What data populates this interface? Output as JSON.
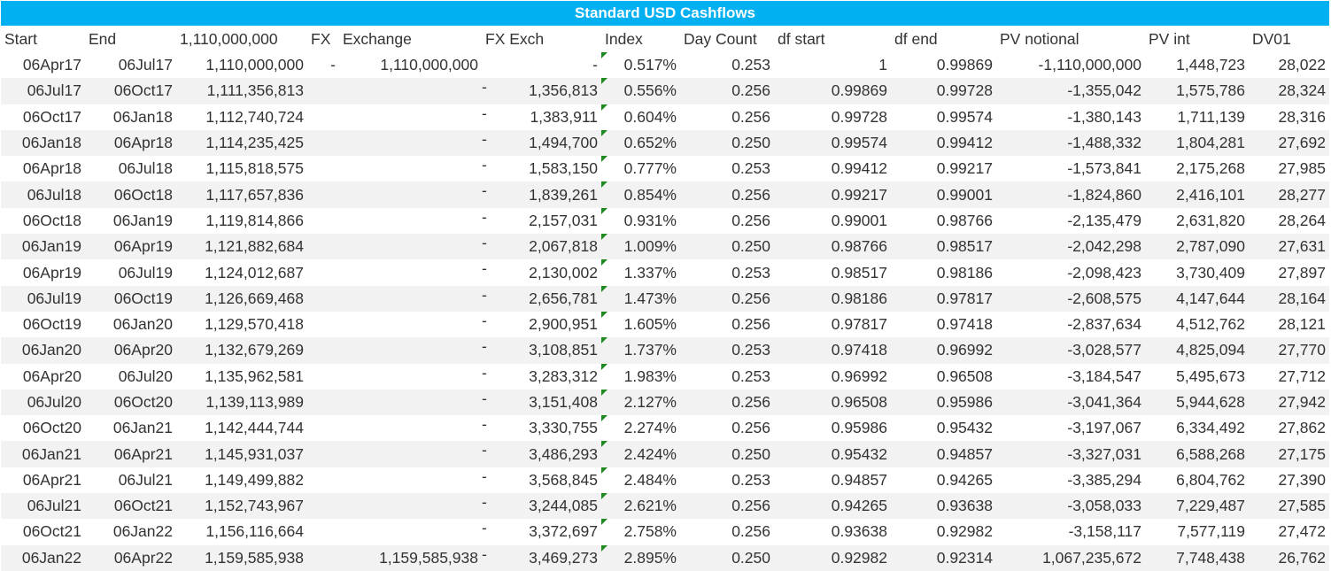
{
  "title": "Standard USD Cashflows",
  "headers": [
    "Start",
    "End",
    "1,110,000,000",
    "FX",
    "Exchange",
    "FX Exch",
    "Index",
    "Day Count",
    "df start",
    "df end",
    "PV notional",
    "PV int",
    "DV01"
  ],
  "rows": [
    {
      "start": "06Apr17",
      "end": "06Jul17",
      "notional": "1,110,000,000",
      "fx": "-",
      "exchange": "1,110,000,000",
      "fxexch_dash": "",
      "fxexch": "-",
      "index": "0.517%",
      "daycount": "0.253",
      "dfstart": "1",
      "dfend": "0.99869",
      "pvnotional": "-1,110,000,000",
      "pvint": "1,448,723",
      "dv01": "28,022"
    },
    {
      "start": "06Jul17",
      "end": "06Oct17",
      "notional": "1,111,356,813",
      "fx": "",
      "exchange": "",
      "fxexch_dash": "-",
      "fxexch": "1,356,813",
      "index": "0.556%",
      "daycount": "0.256",
      "dfstart": "0.99869",
      "dfend": "0.99728",
      "pvnotional": "-1,355,042",
      "pvint": "1,575,786",
      "dv01": "28,324"
    },
    {
      "start": "06Oct17",
      "end": "06Jan18",
      "notional": "1,112,740,724",
      "fx": "",
      "exchange": "",
      "fxexch_dash": "-",
      "fxexch": "1,383,911",
      "index": "0.604%",
      "daycount": "0.256",
      "dfstart": "0.99728",
      "dfend": "0.99574",
      "pvnotional": "-1,380,143",
      "pvint": "1,711,139",
      "dv01": "28,316"
    },
    {
      "start": "06Jan18",
      "end": "06Apr18",
      "notional": "1,114,235,425",
      "fx": "",
      "exchange": "",
      "fxexch_dash": "-",
      "fxexch": "1,494,700",
      "index": "0.652%",
      "daycount": "0.250",
      "dfstart": "0.99574",
      "dfend": "0.99412",
      "pvnotional": "-1,488,332",
      "pvint": "1,804,281",
      "dv01": "27,692"
    },
    {
      "start": "06Apr18",
      "end": "06Jul18",
      "notional": "1,115,818,575",
      "fx": "",
      "exchange": "",
      "fxexch_dash": "-",
      "fxexch": "1,583,150",
      "index": "0.777%",
      "daycount": "0.253",
      "dfstart": "0.99412",
      "dfend": "0.99217",
      "pvnotional": "-1,573,841",
      "pvint": "2,175,268",
      "dv01": "27,985"
    },
    {
      "start": "06Jul18",
      "end": "06Oct18",
      "notional": "1,117,657,836",
      "fx": "",
      "exchange": "",
      "fxexch_dash": "-",
      "fxexch": "1,839,261",
      "index": "0.854%",
      "daycount": "0.256",
      "dfstart": "0.99217",
      "dfend": "0.99001",
      "pvnotional": "-1,824,860",
      "pvint": "2,416,101",
      "dv01": "28,277"
    },
    {
      "start": "06Oct18",
      "end": "06Jan19",
      "notional": "1,119,814,866",
      "fx": "",
      "exchange": "",
      "fxexch_dash": "-",
      "fxexch": "2,157,031",
      "index": "0.931%",
      "daycount": "0.256",
      "dfstart": "0.99001",
      "dfend": "0.98766",
      "pvnotional": "-2,135,479",
      "pvint": "2,631,820",
      "dv01": "28,264"
    },
    {
      "start": "06Jan19",
      "end": "06Apr19",
      "notional": "1,121,882,684",
      "fx": "",
      "exchange": "",
      "fxexch_dash": "-",
      "fxexch": "2,067,818",
      "index": "1.009%",
      "daycount": "0.250",
      "dfstart": "0.98766",
      "dfend": "0.98517",
      "pvnotional": "-2,042,298",
      "pvint": "2,787,090",
      "dv01": "27,631"
    },
    {
      "start": "06Apr19",
      "end": "06Jul19",
      "notional": "1,124,012,687",
      "fx": "",
      "exchange": "",
      "fxexch_dash": "-",
      "fxexch": "2,130,002",
      "index": "1.337%",
      "daycount": "0.253",
      "dfstart": "0.98517",
      "dfend": "0.98186",
      "pvnotional": "-2,098,423",
      "pvint": "3,730,409",
      "dv01": "27,897"
    },
    {
      "start": "06Jul19",
      "end": "06Oct19",
      "notional": "1,126,669,468",
      "fx": "",
      "exchange": "",
      "fxexch_dash": "-",
      "fxexch": "2,656,781",
      "index": "1.473%",
      "daycount": "0.256",
      "dfstart": "0.98186",
      "dfend": "0.97817",
      "pvnotional": "-2,608,575",
      "pvint": "4,147,644",
      "dv01": "28,164"
    },
    {
      "start": "06Oct19",
      "end": "06Jan20",
      "notional": "1,129,570,418",
      "fx": "",
      "exchange": "",
      "fxexch_dash": "-",
      "fxexch": "2,900,951",
      "index": "1.605%",
      "daycount": "0.256",
      "dfstart": "0.97817",
      "dfend": "0.97418",
      "pvnotional": "-2,837,634",
      "pvint": "4,512,762",
      "dv01": "28,121"
    },
    {
      "start": "06Jan20",
      "end": "06Apr20",
      "notional": "1,132,679,269",
      "fx": "",
      "exchange": "",
      "fxexch_dash": "-",
      "fxexch": "3,108,851",
      "index": "1.737%",
      "daycount": "0.253",
      "dfstart": "0.97418",
      "dfend": "0.96992",
      "pvnotional": "-3,028,577",
      "pvint": "4,825,094",
      "dv01": "27,770"
    },
    {
      "start": "06Apr20",
      "end": "06Jul20",
      "notional": "1,135,962,581",
      "fx": "",
      "exchange": "",
      "fxexch_dash": "-",
      "fxexch": "3,283,312",
      "index": "1.983%",
      "daycount": "0.253",
      "dfstart": "0.96992",
      "dfend": "0.96508",
      "pvnotional": "-3,184,547",
      "pvint": "5,495,673",
      "dv01": "27,712"
    },
    {
      "start": "06Jul20",
      "end": "06Oct20",
      "notional": "1,139,113,989",
      "fx": "",
      "exchange": "",
      "fxexch_dash": "-",
      "fxexch": "3,151,408",
      "index": "2.127%",
      "daycount": "0.256",
      "dfstart": "0.96508",
      "dfend": "0.95986",
      "pvnotional": "-3,041,364",
      "pvint": "5,944,628",
      "dv01": "27,942"
    },
    {
      "start": "06Oct20",
      "end": "06Jan21",
      "notional": "1,142,444,744",
      "fx": "",
      "exchange": "",
      "fxexch_dash": "-",
      "fxexch": "3,330,755",
      "index": "2.274%",
      "daycount": "0.256",
      "dfstart": "0.95986",
      "dfend": "0.95432",
      "pvnotional": "-3,197,067",
      "pvint": "6,334,492",
      "dv01": "27,862"
    },
    {
      "start": "06Jan21",
      "end": "06Apr21",
      "notional": "1,145,931,037",
      "fx": "",
      "exchange": "",
      "fxexch_dash": "-",
      "fxexch": "3,486,293",
      "index": "2.424%",
      "daycount": "0.250",
      "dfstart": "0.95432",
      "dfend": "0.94857",
      "pvnotional": "-3,327,031",
      "pvint": "6,588,268",
      "dv01": "27,175"
    },
    {
      "start": "06Apr21",
      "end": "06Jul21",
      "notional": "1,149,499,882",
      "fx": "",
      "exchange": "",
      "fxexch_dash": "-",
      "fxexch": "3,568,845",
      "index": "2.484%",
      "daycount": "0.253",
      "dfstart": "0.94857",
      "dfend": "0.94265",
      "pvnotional": "-3,385,294",
      "pvint": "6,804,762",
      "dv01": "27,390"
    },
    {
      "start": "06Jul21",
      "end": "06Oct21",
      "notional": "1,152,743,967",
      "fx": "",
      "exchange": "",
      "fxexch_dash": "-",
      "fxexch": "3,244,085",
      "index": "2.621%",
      "daycount": "0.256",
      "dfstart": "0.94265",
      "dfend": "0.93638",
      "pvnotional": "-3,058,033",
      "pvint": "7,229,487",
      "dv01": "27,585"
    },
    {
      "start": "06Oct21",
      "end": "06Jan22",
      "notional": "1,156,116,664",
      "fx": "",
      "exchange": "",
      "fxexch_dash": "-",
      "fxexch": "3,372,697",
      "index": "2.758%",
      "daycount": "0.256",
      "dfstart": "0.93638",
      "dfend": "0.92982",
      "pvnotional": "-3,158,117",
      "pvint": "7,577,119",
      "dv01": "27,472"
    },
    {
      "start": "06Jan22",
      "end": "06Apr22",
      "notional": "1,159,585,938",
      "fx": "",
      "exchange": "1,159,585,938",
      "fxexch_dash": "-",
      "fxexch": "3,469,273",
      "index": "2.895%",
      "daycount": "0.250",
      "dfstart": "0.92982",
      "dfend": "0.92314",
      "pvnotional": "1,067,235,672",
      "pvint": "7,748,438",
      "dv01": "26,762"
    }
  ]
}
